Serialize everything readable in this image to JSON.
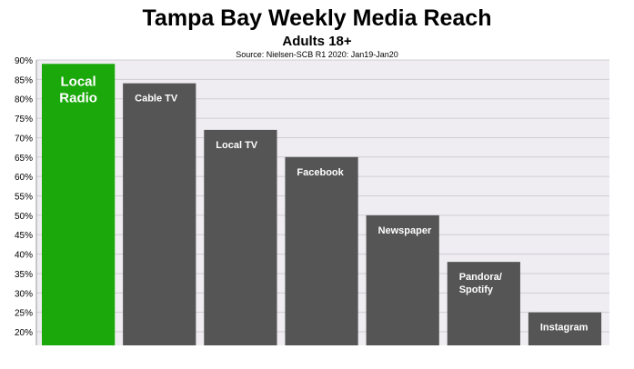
{
  "chart_data": {
    "type": "bar",
    "title": "Tampa Bay Weekly Media Reach",
    "subtitle": "Adults 18+",
    "source": "Source: Nielsen-SCB R1 2020: Jan19-Jan20",
    "categories": [
      "Local Radio",
      "Cable TV",
      "Local TV",
      "Facebook",
      "Newspaper",
      "Pandora/ Spotify",
      "Instagram"
    ],
    "bar_labels": [
      [
        "Local",
        "Radio"
      ],
      [
        "Cable TV"
      ],
      [
        "Local TV"
      ],
      [
        "Facebook"
      ],
      [
        "Newspaper"
      ],
      [
        "Pandora/",
        "Spotify"
      ],
      [
        "Instagram"
      ]
    ],
    "values": [
      89,
      84,
      72,
      65,
      50,
      38,
      25
    ],
    "ylim": [
      16.5,
      90
    ],
    "yticks": [
      "20%",
      "25%",
      "30%",
      "35%",
      "40%",
      "45%",
      "50%",
      "55%",
      "60%",
      "65%",
      "70%",
      "75%",
      "80%",
      "85%",
      "90%"
    ],
    "ytick_values": [
      20,
      25,
      30,
      35,
      40,
      45,
      50,
      55,
      60,
      65,
      70,
      75,
      80,
      85,
      90
    ],
    "grid": true,
    "colors": {
      "highlight": "#1aa80a",
      "bar": "#555555",
      "plot_bg": "#efedf1",
      "grid": "#cfcdd4"
    },
    "highlight_index": 0
  }
}
